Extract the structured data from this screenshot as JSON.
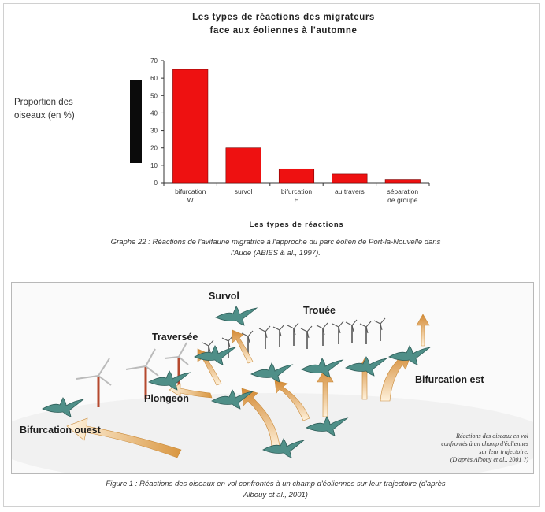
{
  "chart_data": {
    "type": "bar",
    "title_line1": "Les types de réactions des migrateurs",
    "title_line2": "face aux éoliennes à l'automne",
    "ylabel_line1": "Proportion des",
    "ylabel_line2": "oiseaux (en %)",
    "xlabel": "Les types de réactions",
    "categories": [
      [
        "bifurcation",
        "W"
      ],
      [
        "survol"
      ],
      [
        "bifurcation",
        "E"
      ],
      [
        "au travers"
      ],
      [
        "séparation",
        "de groupe"
      ]
    ],
    "values": [
      65,
      20,
      8,
      5,
      2
    ],
    "ylim": [
      0,
      70
    ],
    "yticks": [
      0,
      10,
      20,
      30,
      40,
      50,
      60,
      70
    ],
    "bar_color": "#ee1111",
    "grid": false
  },
  "captions": {
    "graph": [
      "Graphe 22 : Réactions de l'avifaune migratrice à l'approche du parc éolien de Port-la-Nouvelle dans",
      "l'Aude (ABIES & al., 1997)."
    ],
    "figure": [
      "Figure 1 : Réactions des oiseaux en vol confrontés à un champ d'éoliennes sur leur trajectoire (d'après",
      "Albouy et al., 2001)"
    ]
  },
  "illustration": {
    "labels": {
      "survol": "Survol",
      "trouee": "Trouée",
      "traversee": "Traversée",
      "plongeon": "Plongeon",
      "bifurcation_est": "Bifurcation est",
      "bifurcation_ouest": "Bifurcation ouest"
    },
    "note": [
      "Réactions des oiseaux en vol",
      "confrontés à un champ d'éoliennes",
      "sur leur trajectoire.",
      "(D'après Albouy et al., 2001 ?)"
    ],
    "arrow_color": "#e8b25a",
    "bird_color": "#4a8a84"
  }
}
